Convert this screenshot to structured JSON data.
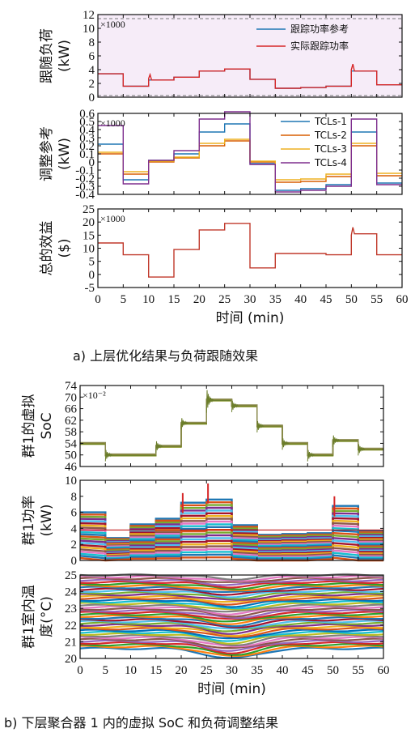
{
  "captions": {
    "a": "a) 上层优化结果与负荷跟随效果",
    "b": "b) 下层聚合器 1 内的虚拟 SoC 和负荷调整结果"
  },
  "xlabel": "时间 (min)",
  "chart_data": [
    {
      "type": "line",
      "id": "tracking",
      "ylabel": [
        "跟随负荷",
        "(kW)"
      ],
      "multiplier": "×1000",
      "ylim": [
        0,
        12
      ],
      "yticks": [
        0,
        2,
        4,
        6,
        8,
        10,
        12
      ],
      "xlim": [
        0,
        60
      ],
      "xticks": [],
      "shaded_band": [
        0,
        12
      ],
      "legend_position": "top-right",
      "series": [
        {
          "name": "跟踪功率参考",
          "color": "#1f77b4",
          "x": [
            0,
            5,
            5,
            10,
            10,
            15,
            15,
            20,
            20,
            25,
            25,
            30,
            30,
            35,
            35,
            40,
            40,
            45,
            45,
            50,
            50,
            55,
            55,
            60
          ],
          "y": [
            3.4,
            3.4,
            1.6,
            1.6,
            2.5,
            2.5,
            2.9,
            2.9,
            3.8,
            3.8,
            4.1,
            4.1,
            2.6,
            2.6,
            1.3,
            1.3,
            1.4,
            1.4,
            1.6,
            1.6,
            3.8,
            3.8,
            1.8,
            1.8
          ]
        },
        {
          "name": "实际跟踪功率",
          "color": "#d62728",
          "x": [
            0,
            5,
            5,
            10,
            10,
            10.3,
            10.6,
            15,
            15,
            20,
            20,
            25,
            25,
            30,
            30,
            35,
            35,
            40,
            40,
            45,
            45,
            50,
            50,
            50.3,
            50.6,
            55,
            55,
            60
          ],
          "y": [
            3.4,
            3.4,
            1.6,
            1.6,
            2.7,
            3.3,
            2.5,
            2.5,
            2.9,
            2.9,
            3.8,
            3.8,
            4.1,
            4.1,
            2.6,
            2.6,
            1.3,
            1.3,
            1.4,
            1.4,
            1.6,
            1.6,
            4.0,
            4.8,
            3.8,
            3.8,
            1.8,
            1.8
          ]
        }
      ]
    },
    {
      "type": "line",
      "id": "adjust",
      "ylabel": [
        "调整参考",
        "(kW)"
      ],
      "multiplier": "×1000",
      "ylim": [
        -0.4,
        0.6
      ],
      "yticks": [
        -0.4,
        -0.3,
        -0.2,
        -0.1,
        0,
        0.1,
        0.2,
        0.3,
        0.4,
        0.5,
        0.6
      ],
      "ytick_labels": [
        "-0.4",
        "-0.3",
        "-0.2",
        "-0.1",
        "0",
        "0.1",
        "0.2",
        "0.3",
        "0.4",
        "0.5",
        "0.6"
      ],
      "xlim": [
        0,
        60
      ],
      "xticks": [],
      "legend_position": "right",
      "series": [
        {
          "name": "TCLs-1",
          "color": "#1f77b4",
          "x": [
            0,
            5,
            5,
            10,
            10,
            15,
            15,
            20,
            20,
            25,
            25,
            30,
            30,
            35,
            35,
            40,
            40,
            45,
            45,
            50,
            50,
            55,
            55,
            60
          ],
          "y": [
            0.22,
            0.22,
            -0.22,
            -0.22,
            0.02,
            0.02,
            0.1,
            0.1,
            0.37,
            0.37,
            0.47,
            0.47,
            -0.02,
            -0.02,
            -0.35,
            -0.35,
            -0.33,
            -0.33,
            -0.28,
            -0.28,
            0.37,
            0.37,
            -0.26,
            -0.26
          ]
        },
        {
          "name": "TCLs-2",
          "color": "#d95f02",
          "x": [
            0,
            5,
            5,
            10,
            10,
            15,
            15,
            20,
            20,
            25,
            25,
            30,
            30,
            35,
            35,
            40,
            40,
            45,
            45,
            50,
            50,
            55,
            55,
            60
          ],
          "y": [
            0.1,
            0.1,
            -0.15,
            -0.15,
            0.0,
            0.0,
            0.05,
            0.05,
            0.2,
            0.2,
            0.26,
            0.26,
            0.0,
            0.0,
            -0.25,
            -0.25,
            -0.24,
            -0.24,
            -0.18,
            -0.18,
            0.2,
            0.2,
            -0.17,
            -0.17
          ]
        },
        {
          "name": "TCLs-3",
          "color": "#edb120",
          "x": [
            0,
            5,
            5,
            10,
            10,
            15,
            15,
            20,
            20,
            25,
            25,
            30,
            30,
            35,
            35,
            40,
            40,
            45,
            45,
            50,
            50,
            55,
            55,
            60
          ],
          "y": [
            0.12,
            0.12,
            -0.12,
            -0.12,
            0.01,
            0.01,
            0.06,
            0.06,
            0.23,
            0.23,
            0.28,
            0.28,
            0.01,
            0.01,
            -0.22,
            -0.22,
            -0.21,
            -0.21,
            -0.15,
            -0.15,
            0.23,
            0.23,
            -0.14,
            -0.14
          ]
        },
        {
          "name": "TCLs-4",
          "color": "#7e2f8e",
          "x": [
            0,
            5,
            5,
            10,
            10,
            15,
            15,
            20,
            20,
            25,
            25,
            30,
            30,
            35,
            35,
            40,
            40,
            45,
            45,
            50,
            50,
            55,
            55,
            60
          ],
          "y": [
            0.45,
            0.45,
            -0.27,
            -0.27,
            0.02,
            0.02,
            0.14,
            0.14,
            0.53,
            0.53,
            0.62,
            0.62,
            -0.03,
            -0.03,
            -0.37,
            -0.37,
            -0.35,
            -0.35,
            -0.3,
            -0.3,
            0.53,
            0.53,
            -0.28,
            -0.28
          ]
        }
      ]
    },
    {
      "type": "line",
      "id": "benefit",
      "ylabel": [
        "总的效益",
        "($)"
      ],
      "multiplier": "×1000",
      "ylim": [
        -5,
        25
      ],
      "yticks": [
        -5,
        0,
        5,
        10,
        15,
        20,
        25
      ],
      "xlim": [
        0,
        60
      ],
      "xticks": [
        0,
        5,
        10,
        15,
        20,
        25,
        30,
        35,
        40,
        45,
        50,
        55,
        60
      ],
      "show_xlabel": true,
      "series": [
        {
          "name": "",
          "color": "#c0392b",
          "x": [
            0,
            5,
            5,
            10,
            10,
            15,
            15,
            20,
            20,
            25,
            25,
            30,
            30,
            35,
            35,
            40,
            40,
            45,
            45,
            50,
            50,
            50.3,
            50.6,
            55,
            55,
            60
          ],
          "y": [
            12,
            12,
            7.5,
            7.5,
            -1,
            -1,
            9.5,
            9.5,
            17,
            17,
            19.5,
            19.5,
            2.5,
            2.5,
            8,
            8,
            8,
            8,
            7.5,
            7.5,
            15,
            18,
            15.5,
            15.5,
            7.5,
            7.5
          ]
        }
      ]
    },
    {
      "type": "line",
      "id": "soc",
      "ylabel": [
        "群1的虚拟",
        "SoC"
      ],
      "multiplier": "×10⁻²",
      "ylim": [
        46,
        74
      ],
      "yticks": [
        46,
        50,
        54,
        58,
        62,
        66,
        70,
        74
      ],
      "xlim": [
        0,
        60
      ],
      "xticks": [],
      "series": [
        {
          "name": "",
          "color": "#808000",
          "x": [
            0,
            5,
            5,
            10,
            10,
            15,
            15,
            20,
            20,
            25,
            25,
            30,
            30,
            35,
            35,
            40,
            40,
            45,
            45,
            50,
            50,
            55,
            55,
            60
          ],
          "y": [
            54,
            54,
            50,
            50,
            50,
            50,
            53,
            53,
            61,
            61,
            69,
            69,
            67,
            67,
            60,
            60,
            54,
            54,
            50,
            50,
            55,
            55,
            52,
            52
          ]
        }
      ]
    },
    {
      "type": "area",
      "id": "power",
      "ylabel": [
        "群1功率",
        "(kW)"
      ],
      "ylim": [
        0,
        10
      ],
      "yticks": [
        0,
        2,
        4,
        6,
        8,
        10
      ],
      "xlim": [
        0,
        60
      ],
      "xticks": [],
      "series": [
        {
          "name": "",
          "color": "#3b6fb6",
          "x": [
            0,
            5,
            5,
            10,
            10,
            15,
            15,
            20,
            20,
            25,
            25,
            30,
            30,
            35,
            35,
            40,
            40,
            45,
            45,
            50,
            50,
            55,
            55,
            60
          ],
          "y": [
            6,
            6,
            2.8,
            2.8,
            4.5,
            4.5,
            5.2,
            5.2,
            7.2,
            7.2,
            7.6,
            7.6,
            4.4,
            4.4,
            3.2,
            3.2,
            3.3,
            3.3,
            3.4,
            3.4,
            6.8,
            6.8,
            3.7,
            3.7
          ]
        }
      ]
    },
    {
      "type": "line",
      "id": "temp",
      "ylabel": [
        "群1室内温",
        "度(°C)"
      ],
      "ylim": [
        20,
        25
      ],
      "yticks": [
        20,
        21,
        22,
        23,
        24,
        25
      ],
      "xlim": [
        0,
        60
      ],
      "xticks": [
        0,
        5,
        10,
        15,
        20,
        25,
        30,
        35,
        40,
        45,
        50,
        55,
        60
      ],
      "show_xlabel": true,
      "band": {
        "upper": [
          25.0,
          24.8
        ],
        "lower": [
          20.6,
          20.0
        ],
        "dip_center": 30,
        "dip_depth": 0.6
      },
      "colors": [
        "#1f77b4",
        "#ff7f0e",
        "#2ca02c",
        "#d62728",
        "#9467bd",
        "#8c564b",
        "#e377c2",
        "#7f7f7f",
        "#bcbd22",
        "#17becf",
        "#0072bd",
        "#d95319",
        "#edb120",
        "#7e2f8e",
        "#77ac30",
        "#4dbeee",
        "#a2142f"
      ]
    }
  ]
}
